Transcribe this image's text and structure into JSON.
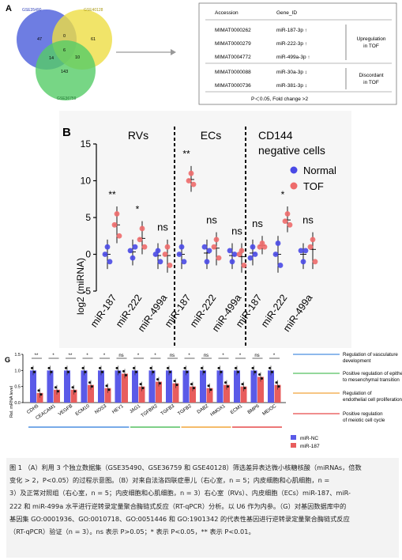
{
  "panel_a": {
    "letter": "A",
    "venn": {
      "sets": [
        {
          "name": "GSE35490",
          "color": "#5566dd"
        },
        {
          "name": "GSE40128",
          "color": "#eedd44"
        },
        {
          "name": "GSE36759",
          "color": "#55cc66"
        }
      ],
      "regions": {
        "only_a": "47",
        "only_b": "61",
        "ab": "0",
        "ac": "14",
        "bc": "10",
        "abc": "6",
        "only_c": "143"
      }
    },
    "table": {
      "headers": [
        "Accession",
        "Gene_ID"
      ],
      "rows": [
        {
          "accession": "MIMAT0000262",
          "gene": "miR-187-3p ↑"
        },
        {
          "accession": "MIMAT0000279",
          "gene": "miR-222-3p ↑"
        },
        {
          "accession": "MIMAT0004772",
          "gene": "miR-499a-3p ↑"
        },
        {
          "accession": "MIMAT0000088",
          "gene": "miR-30a-3p ↕"
        },
        {
          "accession": "MIMAT0000736",
          "gene": "miR-381-3p ↕"
        }
      ],
      "group1": [
        "Upregulation",
        "in TOF"
      ],
      "group2": [
        "Discordant",
        "in TOF"
      ],
      "footer": "P＜0.05, Fold change >2"
    }
  },
  "panel_b": {
    "letter": "B",
    "chart_data": {
      "type": "scatter",
      "ylabel": "log2 (miRNA)",
      "ylim": [
        -5,
        15
      ],
      "yticks": [
        "15",
        "10",
        "5",
        "0",
        "-5"
      ],
      "groups": [
        {
          "title": "RVs",
          "categories": [
            "miR-187",
            "miR-222",
            "miR-499a"
          ]
        },
        {
          "title": "ECs",
          "categories": [
            "miR-187",
            "miR-222",
            "miR-499a"
          ]
        },
        {
          "title_lines": [
            "CD144",
            "negative cells"
          ],
          "categories": [
            "miR-187",
            "miR-222",
            "miR-499a"
          ]
        }
      ],
      "legend": [
        "Normal",
        "TOF"
      ],
      "significance": [
        "**",
        "*",
        "ns",
        "**",
        "ns",
        "ns",
        "ns",
        "*",
        "ns"
      ],
      "series": [
        {
          "name": "Normal",
          "color": "#4a4ae6",
          "values": [
            [
              0,
              1,
              -1
            ],
            [
              0.5,
              -0.5,
              1
            ],
            [
              0,
              0.5,
              -1
            ],
            [
              0,
              1,
              -1
            ],
            [
              1,
              -1,
              0.5
            ],
            [
              0.5,
              -1,
              0
            ],
            [
              -0.5,
              1,
              0
            ],
            [
              0,
              1.5,
              -1.5
            ],
            [
              0.5,
              -1,
              0.5
            ]
          ]
        },
        {
          "name": "TOF",
          "color": "#ee6b6b",
          "values": [
            [
              4,
              5.5,
              2.5
            ],
            [
              2,
              3.5,
              1
            ],
            [
              0,
              1,
              -1.5
            ],
            [
              10,
              11,
              9.5
            ],
            [
              1,
              2,
              -0.5
            ],
            [
              0,
              0.5,
              -1.5
            ],
            [
              1,
              1.5,
              1
            ],
            [
              4.5,
              5.5,
              4
            ],
            [
              1,
              2,
              -1
            ]
          ]
        }
      ],
      "x_tick_labels": [
        "miR-187",
        "miR-222",
        "miR-499a",
        "miR-187",
        "miR-222",
        "miR-499a",
        "miR-187",
        "miR-222",
        "miR-499a"
      ]
    }
  },
  "panel_g": {
    "letter": "G",
    "chart_data": {
      "type": "bar",
      "ylabel": "Rel. mRNA level",
      "ylim": [
        0,
        1.5
      ],
      "yticks": [
        "1.5",
        "1.0",
        "0.5",
        "0.0"
      ],
      "categories": [
        "CDH5",
        "CEACAM1",
        "VEGFB",
        "ECM10",
        "NOS3",
        "HEY1",
        "JAG1",
        "TGFBR2",
        "TGFB3",
        "TGFB2",
        "DAB2",
        "HMOX1",
        "ECM1",
        "BMP6",
        "MEIOC"
      ],
      "series": [
        {
          "name": "miR-NC",
          "color": "#5a5ae8",
          "values": [
            1.0,
            1.0,
            1.0,
            1.0,
            1.0,
            1.0,
            1.0,
            1.0,
            1.0,
            1.0,
            1.0,
            1.0,
            1.0,
            1.0,
            1.0
          ]
        },
        {
          "name": "miR-187",
          "color": "#e85d5d",
          "values": [
            0.3,
            0.4,
            0.4,
            0.55,
            0.45,
            0.9,
            0.5,
            0.65,
            0.6,
            0.5,
            0.45,
            0.55,
            0.5,
            0.8,
            0.55
          ]
        }
      ],
      "significance": [
        "**",
        "*",
        "**",
        "*",
        "*",
        "ns",
        "*",
        "*",
        "ns",
        "*",
        "ns",
        "*",
        "*",
        "ns",
        "*"
      ],
      "pathways": [
        {
          "label": [
            "Regulation of vasculature",
            "development"
          ],
          "color": "#4b8fe0"
        },
        {
          "label": [
            "Positive regulation of epithelial",
            "to mesenchymal transition"
          ],
          "color": "#55c060"
        },
        {
          "label": [
            "Regulation of",
            "endothelial cell proliferation"
          ],
          "color": "#f2a53a"
        },
        {
          "label": [
            "Positive regulation",
            "of meiotic cell cycle"
          ],
          "color": "#e64a4a"
        }
      ]
    }
  },
  "caption": {
    "lines": [
      "图 1 （A）利用 3 个独立数据集（GSE35490、GSE36759 和 GSE40128）筛选差异表达微小核糖核酸（miRNAs，倍数",
      "变化 > 2，P<0.05）的过程示意图。（B）对来自法洛四联症患儿（右心室，n = 5；内皮细胞和心肌细胞，n =",
      "3）及正常对照组（右心室，n = 5；内皮细胞和心肌细胞，n = 3）右心室（RVs）、内皮细胞（ECs）miR-187、miR-",
      "222 和 miR-499a 水平进行逆转录定量聚合酶链式反应（RT-qPCR）分析。以 U6 作为内参。（G）对基因数据库中的",
      "基因集 GO:0001936、GO:0010718、GO:0051446 和 GO:1901342 的代表性基因进行逆转录定量聚合酶链式反应",
      "（RT-qPCR）验证（n = 3）。ns 表示 P>0.05；* 表示 P<0.05，** 表示 P<0.01。"
    ]
  }
}
